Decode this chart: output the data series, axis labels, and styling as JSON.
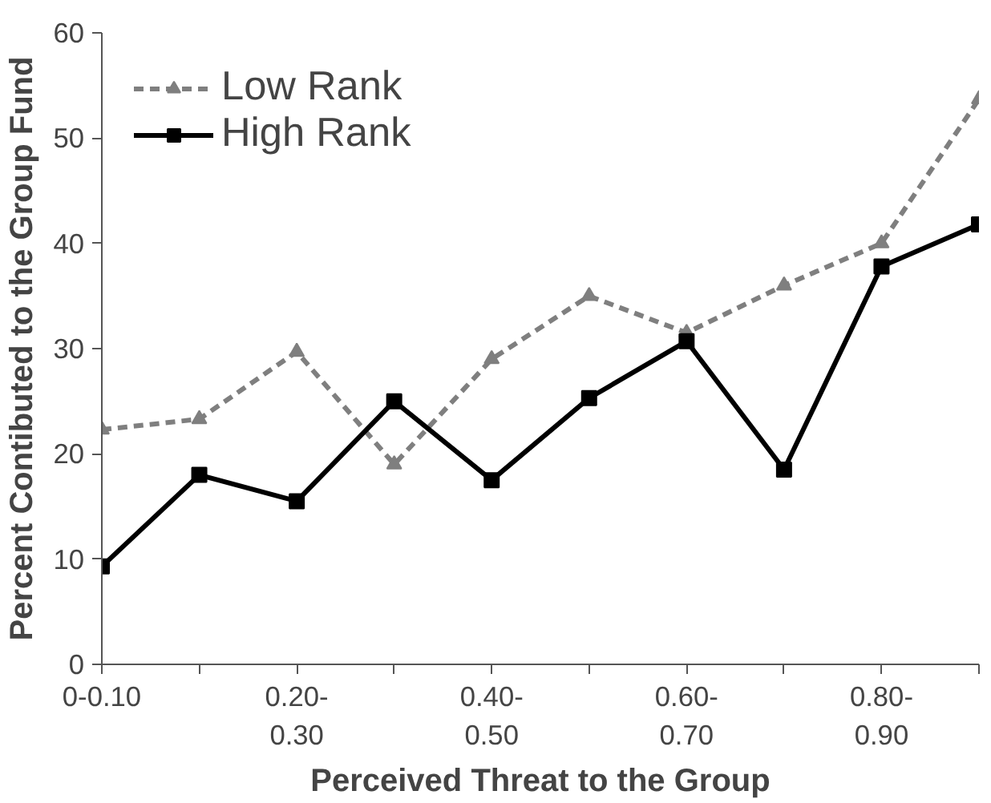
{
  "chart_data": {
    "type": "line",
    "xlabel": "Perceived Threat to the Group",
    "ylabel": "Percent Contibuted to the Group Fund",
    "categories": [
      "0-0.10",
      null,
      "0.20-\n0.30",
      null,
      "0.40-\n0.50",
      null,
      "0.60-\n0.70",
      null,
      "0.80-\n0.90",
      null
    ],
    "series": [
      {
        "name": "Low Rank",
        "color": "#7f7f7f",
        "marker": "triangle",
        "line_style": "dashed",
        "values": [
          22.3,
          23.3,
          29.7,
          19,
          29,
          35,
          31.5,
          36,
          40,
          53.7
        ]
      },
      {
        "name": "High Rank",
        "color": "#000000",
        "marker": "square",
        "line_style": "solid",
        "values": [
          9.3,
          18,
          15.5,
          25,
          17.5,
          25.3,
          30.7,
          18.5,
          37.8,
          41.8
        ]
      }
    ],
    "ylim": [
      0,
      60
    ],
    "yticks": [
      0,
      10,
      20,
      30,
      40,
      50,
      60
    ],
    "grid": false,
    "legend": "top left"
  }
}
